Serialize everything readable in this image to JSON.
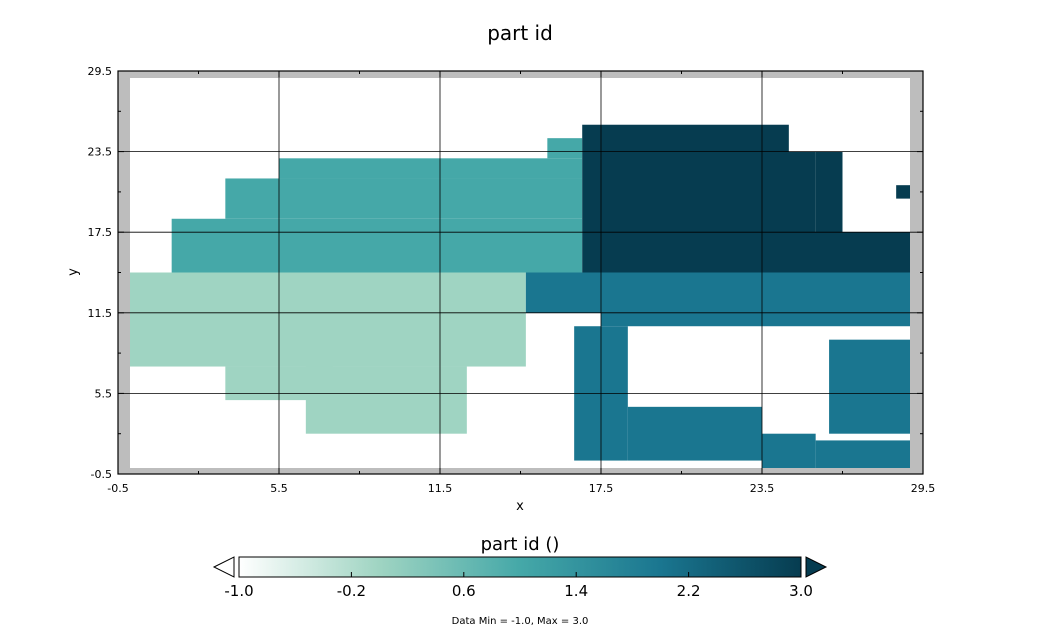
{
  "chart_data": {
    "type": "heatmap",
    "title": "part id",
    "xlabel": "x",
    "ylabel": "y",
    "xlim": [
      -0.5,
      29.5
    ],
    "ylim": [
      -0.5,
      29.5
    ],
    "xticks": [
      "-0.5",
      "5.5",
      "11.5",
      "17.5",
      "23.5",
      "29.5"
    ],
    "yticks": [
      "-0.5",
      "5.5",
      "11.5",
      "17.5",
      "23.5",
      "29.5"
    ],
    "grid": true,
    "colorbar": {
      "title": "part id ()",
      "ticks": [
        "-1.0",
        "-0.2",
        "0.6",
        "1.4",
        "2.2",
        "3.0"
      ],
      "min": -1.0,
      "max": 3.0,
      "colors": [
        "#ffffff",
        "#9fd4c2",
        "#45a8a8",
        "#1a7690",
        "#063c50"
      ]
    },
    "regions": [
      {
        "value": -1.0,
        "x": [
          -0.5,
          29.5
        ],
        "y": [
          -0.5,
          29.5
        ]
      },
      {
        "value": 0.0,
        "x": [
          -0.5,
          14.7
        ],
        "y": [
          7.5,
          14.5
        ]
      },
      {
        "value": 0.0,
        "x": [
          3.5,
          7.5
        ],
        "y": [
          5.0,
          7.5
        ]
      },
      {
        "value": 0.0,
        "x": [
          6.5,
          12.5
        ],
        "y": [
          2.5,
          7.5
        ]
      },
      {
        "value": 1.0,
        "x": [
          1.5,
          16.8
        ],
        "y": [
          14.5,
          18.5
        ]
      },
      {
        "value": 1.0,
        "x": [
          3.5,
          16.8
        ],
        "y": [
          18.5,
          21.5
        ]
      },
      {
        "value": 1.0,
        "x": [
          5.5,
          16.8
        ],
        "y": [
          21.5,
          23.0
        ]
      },
      {
        "value": 1.0,
        "x": [
          15.5,
          16.8
        ],
        "y": [
          23.0,
          24.5
        ]
      },
      {
        "value": 3.0,
        "x": [
          16.8,
          29.5
        ],
        "y": [
          14.5,
          17.5
        ]
      },
      {
        "value": 3.0,
        "x": [
          16.8,
          25.5
        ],
        "y": [
          17.5,
          23.5
        ]
      },
      {
        "value": 3.0,
        "x": [
          16.8,
          24.5
        ],
        "y": [
          23.5,
          25.5
        ]
      },
      {
        "value": 3.0,
        "x": [
          25.5,
          26.5
        ],
        "y": [
          17.5,
          23.5
        ]
      },
      {
        "value": 3.0,
        "x": [
          28.5,
          29.5
        ],
        "y": [
          20.0,
          21.0
        ]
      },
      {
        "value": 2.0,
        "x": [
          14.7,
          29.5
        ],
        "y": [
          11.5,
          14.5
        ]
      },
      {
        "value": 2.0,
        "x": [
          17.5,
          29.5
        ],
        "y": [
          10.5,
          11.5
        ]
      },
      {
        "value": 2.0,
        "x": [
          16.5,
          18.5
        ],
        "y": [
          0.5,
          10.5
        ]
      },
      {
        "value": 2.0,
        "x": [
          18.5,
          23.5
        ],
        "y": [
          0.5,
          4.5
        ]
      },
      {
        "value": 2.0,
        "x": [
          23.5,
          25.5
        ],
        "y": [
          -0.5,
          2.5
        ]
      },
      {
        "value": 2.0,
        "x": [
          26.0,
          29.5
        ],
        "y": [
          2.5,
          9.5
        ]
      },
      {
        "value": 2.0,
        "x": [
          25.5,
          29.5
        ],
        "y": [
          -0.5,
          2.0
        ]
      }
    ]
  },
  "footer": {
    "stats": "Data Min = -1.0, Max = 3.0"
  }
}
